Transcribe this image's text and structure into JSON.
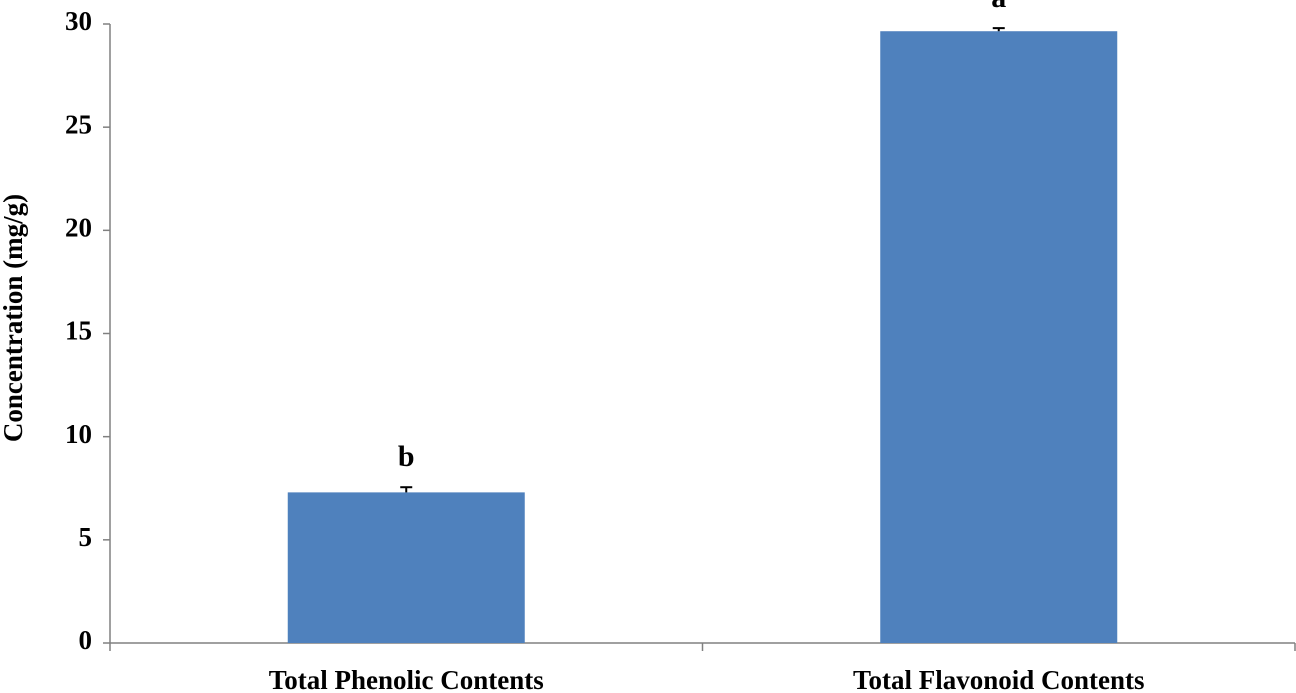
{
  "chart_data": {
    "type": "bar",
    "categories": [
      "Total Phenolic Contents",
      "Total Flavonoid Contents"
    ],
    "values": [
      7.3,
      29.65
    ],
    "errors": [
      0.25,
      0.15
    ],
    "annotations": [
      "b",
      "a"
    ],
    "color": "#4f81bd",
    "y_label": "Concentration (mg/g)",
    "ylim": [
      0,
      30
    ],
    "yticks": [
      0,
      5,
      10,
      15,
      20,
      25,
      30
    ],
    "grid": false
  }
}
